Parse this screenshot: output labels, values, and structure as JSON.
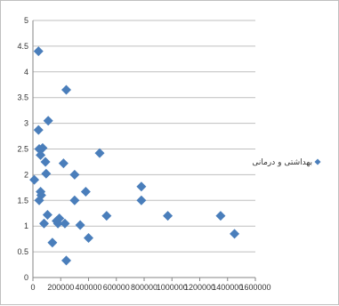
{
  "chart_data": {
    "type": "scatter",
    "title": "",
    "xlabel": "",
    "ylabel": "",
    "xlim": [
      0,
      1600000
    ],
    "ylim": [
      0,
      5
    ],
    "x_ticks": [
      "0",
      "200000",
      "400000",
      "600000",
      "800000",
      "1000000",
      "1200000",
      "1400000",
      "1600000"
    ],
    "y_ticks": [
      "0",
      "0.5",
      "1",
      "1.5",
      "2",
      "2.5",
      "3",
      "3.5",
      "4",
      "4.5",
      "5"
    ],
    "grid": "horizontal",
    "legend_position": "right",
    "series": [
      {
        "name": "بهداشتی و درمانی",
        "color": "#4a7ebb",
        "marker": "diamond",
        "points": [
          [
            40000,
            4.4
          ],
          [
            240000,
            3.65
          ],
          [
            110000,
            3.05
          ],
          [
            40000,
            2.87
          ],
          [
            45000,
            2.5
          ],
          [
            70000,
            2.52
          ],
          [
            55000,
            2.38
          ],
          [
            90000,
            2.25
          ],
          [
            220000,
            2.22
          ],
          [
            480000,
            2.42
          ],
          [
            95000,
            2.02
          ],
          [
            300000,
            2.0
          ],
          [
            10000,
            1.9
          ],
          [
            380000,
            1.67
          ],
          [
            55000,
            1.67
          ],
          [
            60000,
            1.6
          ],
          [
            45000,
            1.5
          ],
          [
            300000,
            1.5
          ],
          [
            780000,
            1.77
          ],
          [
            780000,
            1.5
          ],
          [
            105000,
            1.22
          ],
          [
            190000,
            1.15
          ],
          [
            170000,
            1.1
          ],
          [
            180000,
            1.05
          ],
          [
            80000,
            1.05
          ],
          [
            230000,
            1.05
          ],
          [
            340000,
            1.02
          ],
          [
            530000,
            1.2
          ],
          [
            970000,
            1.2
          ],
          [
            1350000,
            1.2
          ],
          [
            1450000,
            0.85
          ],
          [
            400000,
            0.77
          ],
          [
            140000,
            0.68
          ],
          [
            240000,
            0.33
          ]
        ]
      }
    ]
  }
}
